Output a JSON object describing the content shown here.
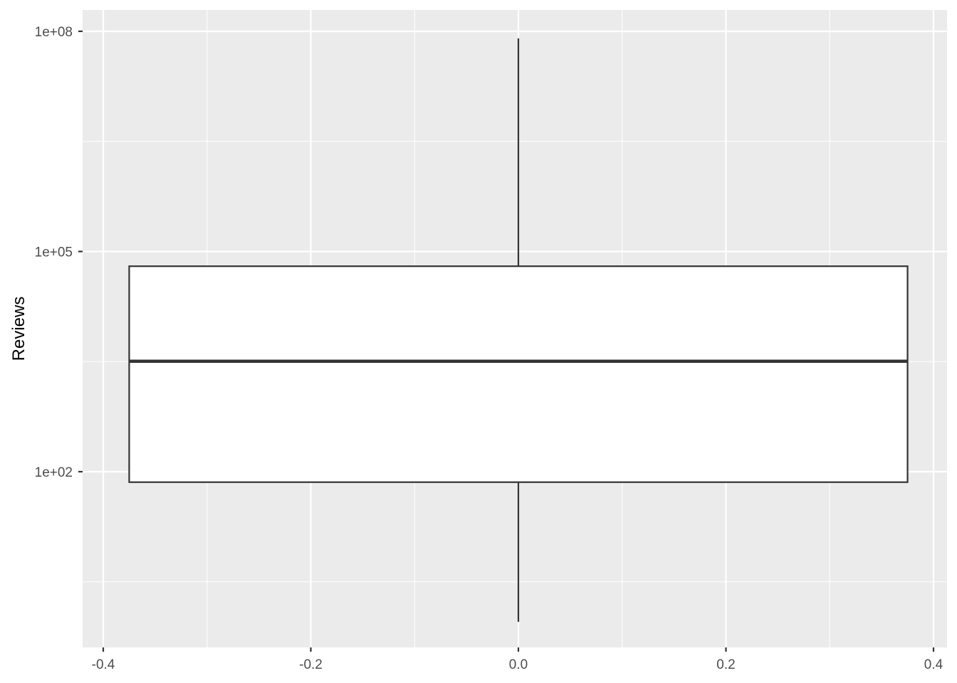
{
  "chart_data": {
    "type": "boxplot",
    "title": "",
    "xlabel": "",
    "ylabel": "Reviews",
    "y_scale": "log10",
    "xlim": [
      -0.4,
      0.4
    ],
    "x_ticks": [
      "-0.4",
      "-0.2",
      "0.0",
      "0.2",
      "0.4"
    ],
    "y_ticks": [
      "1e+02",
      "1e+05",
      "1e+08"
    ],
    "grid": true,
    "colors": {
      "panel_background": "#ebebeb",
      "grid": "#ffffff",
      "box_fill": "#ffffff",
      "box_line": "#333333",
      "tick_text": "#4d4d4d"
    },
    "box": {
      "x": 0.0,
      "x_range": [
        -0.375,
        0.375
      ],
      "min": 0.9,
      "q1": 72,
      "median": 3200,
      "q3": 63000,
      "max": 80000000
    }
  }
}
